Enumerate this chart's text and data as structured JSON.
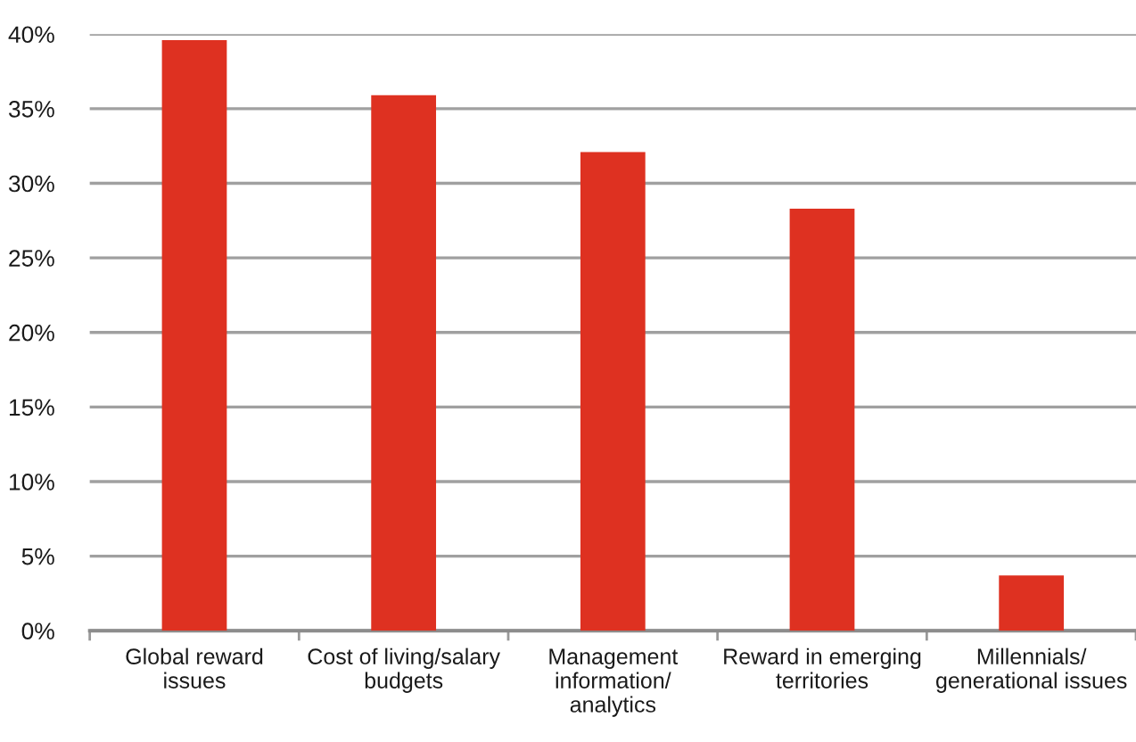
{
  "chart_data": {
    "type": "bar",
    "categories": [
      "Global reward\nissues",
      "Cost of living/salary\nbudgets",
      "Management\ninformation/\nanalytics",
      "Reward in emerging\nterritories",
      "Millennials/\ngenerational issues"
    ],
    "values": [
      39.6,
      35.9,
      32.1,
      28.3,
      3.7
    ],
    "color": "#de3121",
    "ylim": [
      0,
      40
    ],
    "yticks": [
      {
        "value": 0,
        "label": "0%"
      },
      {
        "value": 5,
        "label": "5%"
      },
      {
        "value": 10,
        "label": "10%"
      },
      {
        "value": 15,
        "label": "15%"
      },
      {
        "value": 20,
        "label": "20%"
      },
      {
        "value": 25,
        "label": "25%"
      },
      {
        "value": 30,
        "label": "30%"
      },
      {
        "value": 35,
        "label": "35%"
      },
      {
        "value": 40,
        "label": "40%"
      }
    ],
    "grid": "y"
  }
}
